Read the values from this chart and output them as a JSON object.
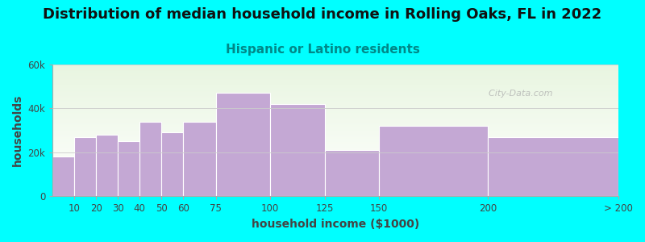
{
  "title": "Distribution of median household income in Rolling Oaks, FL in 2022",
  "subtitle": "Hispanic or Latino residents",
  "xlabel": "household income ($1000)",
  "ylabel": "households",
  "background_color": "#00FFFF",
  "plot_bg_top": "#e8f5e0",
  "plot_bg_bottom": "#ffffff",
  "bar_color": "#C4A8D4",
  "watermark": "  City-Data.com",
  "bin_edges": [
    0,
    10,
    20,
    30,
    40,
    50,
    60,
    75,
    100,
    125,
    150,
    200,
    260
  ],
  "values": [
    18000,
    27000,
    28000,
    25000,
    34000,
    29000,
    34000,
    47000,
    42000,
    21000,
    32000,
    27000
  ],
  "xtick_positions": [
    10,
    20,
    30,
    40,
    50,
    60,
    75,
    100,
    125,
    150,
    200,
    260
  ],
  "xtick_labels": [
    "10",
    "20",
    "30",
    "40",
    "50",
    "60",
    "75",
    "100",
    "125",
    "150",
    "200",
    "> 200"
  ],
  "ylim": [
    0,
    60000
  ],
  "yticks": [
    0,
    20000,
    40000,
    60000
  ],
  "ytick_labels": [
    "0",
    "20k",
    "40k",
    "60k"
  ],
  "title_fontsize": 13,
  "subtitle_fontsize": 11,
  "label_fontsize": 10,
  "tick_fontsize": 8.5
}
